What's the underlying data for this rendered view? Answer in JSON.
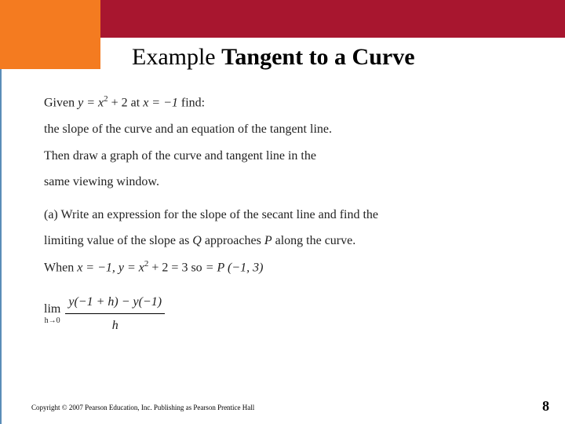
{
  "header": {
    "bar_color": "#a8162f",
    "block_color": "#f47b20",
    "accent_line_color": "#5b8db8"
  },
  "title": {
    "prefix": "Example ",
    "bold": "Tangent to a Curve"
  },
  "body": {
    "given_prefix": "Given ",
    "given_eq_y": "y",
    "given_eq_rhs": " = x",
    "given_eq_exp": "2",
    "given_eq_tail": " + 2",
    "given_at": "  at  ",
    "given_x": "x = −1",
    "given_find": " find:",
    "line2": "the slope of the curve and an equation of the tangent line.",
    "line3": "Then draw a graph of the curve and tangent line in the",
    "line4": "same viewing window.",
    "part_a_label": "(a)",
    "part_a_text1": "  Write an expression for the slope of the secant line and find the",
    "part_a_text2": "limiting value of the slope as ",
    "part_a_q": "Q",
    "part_a_text3": " approaches ",
    "part_a_p": "P",
    "part_a_text4": " along the curve.",
    "when_prefix": "When ",
    "when_x": "x = −1,  ",
    "when_y": "y = x",
    "when_exp": "2",
    "when_tail": " + 2 = 3",
    "when_so": "  so  ",
    "when_point": "= P (−1, 3)",
    "lim_label": "lim",
    "lim_sub": "h→0",
    "frac_num": "y(−1 + h) − y(−1)",
    "frac_den": "h"
  },
  "footer": {
    "copyright": "Copyright © 2007 Pearson Education, Inc. Publishing as Pearson Prentice Hall",
    "page": "8"
  }
}
